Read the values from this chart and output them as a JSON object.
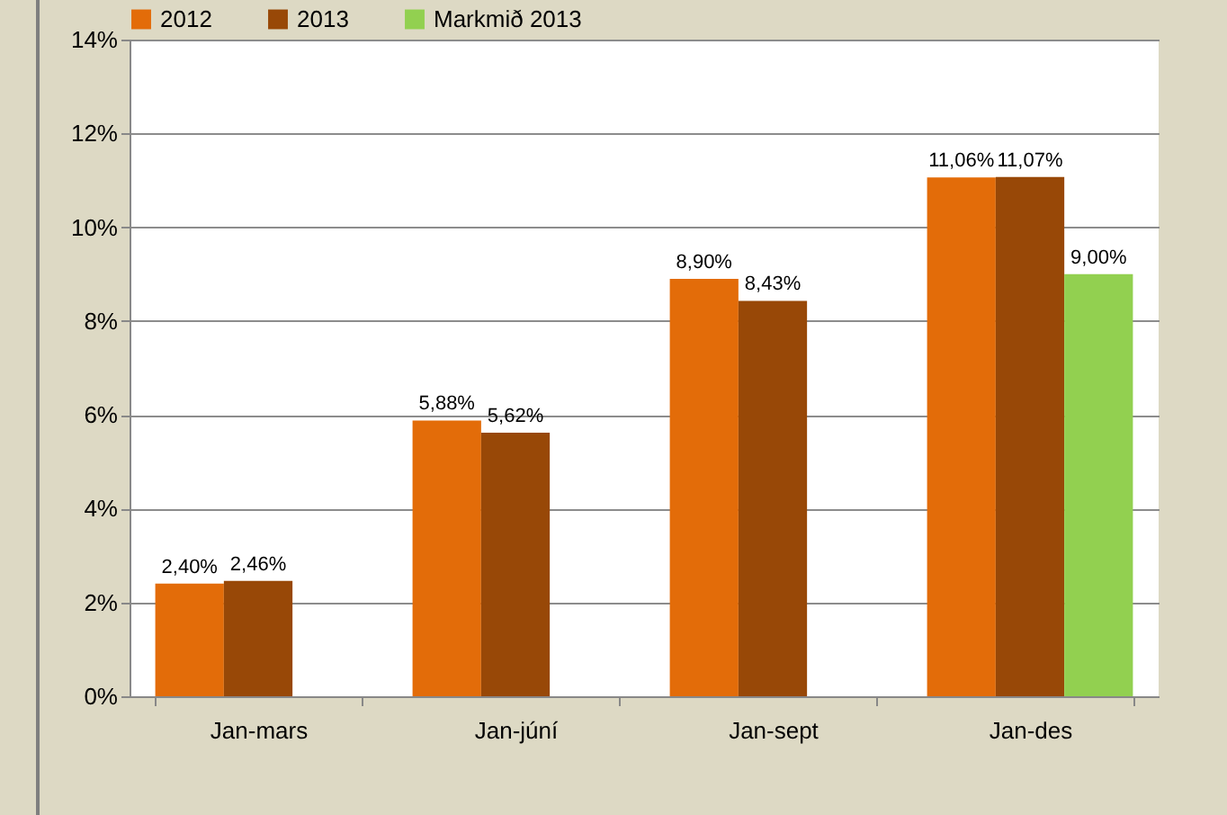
{
  "chart_data": {
    "type": "bar",
    "categories": [
      "Jan-mars",
      "Jan-júní",
      "Jan-sept",
      "Jan-des"
    ],
    "series": [
      {
        "name": "2012",
        "color": "#e36c09",
        "values": [
          2.4,
          5.88,
          8.9,
          11.06
        ],
        "value_labels": [
          "2,40%",
          "5,88%",
          "8,90%",
          "11,06%"
        ]
      },
      {
        "name": "2013",
        "color": "#984807",
        "values": [
          2.46,
          5.62,
          8.43,
          11.07
        ],
        "value_labels": [
          "2,46%",
          "5,62%",
          "8,43%",
          "11,07%"
        ]
      },
      {
        "name": "Markmið 2013",
        "color": "#92d050",
        "values": [
          null,
          null,
          null,
          9.0
        ],
        "value_labels": [
          null,
          null,
          null,
          "9,00%"
        ]
      }
    ],
    "ylim": [
      0,
      14
    ],
    "yticks": [
      {
        "value": 0,
        "label": "0%"
      },
      {
        "value": 2,
        "label": "2%"
      },
      {
        "value": 4,
        "label": "4%"
      },
      {
        "value": 6,
        "label": "6%"
      },
      {
        "value": 8,
        "label": "8%"
      },
      {
        "value": 10,
        "label": "10%"
      },
      {
        "value": 12,
        "label": "12%"
      },
      {
        "value": 14,
        "label": "14%"
      }
    ],
    "grid": "y",
    "legend": "top"
  }
}
